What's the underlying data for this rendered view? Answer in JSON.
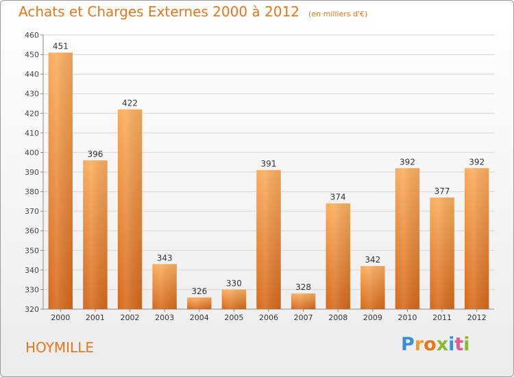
{
  "header": {
    "title": "Achats et Charges Externes 2000 à 2012",
    "subtitle": "(en milliers d'€)"
  },
  "footer": {
    "commune": "HOYMILLE",
    "logo": "Proxiti"
  },
  "colors": {
    "accent": "#e8761c",
    "bar_light": "#f7a855",
    "bar_dark": "#d8691a"
  },
  "chart_data": {
    "type": "bar",
    "title": "Achats et Charges Externes 2000 à 2012",
    "subtitle": "(en milliers d'€)",
    "xlabel": "",
    "ylabel": "",
    "categories": [
      "2000",
      "2001",
      "2002",
      "2003",
      "2004",
      "2005",
      "2006",
      "2007",
      "2008",
      "2009",
      "2010",
      "2011",
      "2012"
    ],
    "values": [
      451,
      396,
      422,
      343,
      326,
      330,
      391,
      328,
      374,
      342,
      392,
      377,
      392
    ],
    "ylim": [
      320,
      460
    ],
    "yticks": [
      320,
      330,
      340,
      350,
      360,
      370,
      380,
      390,
      400,
      410,
      420,
      430,
      440,
      450,
      460
    ],
    "grid": true,
    "legend": "none"
  }
}
